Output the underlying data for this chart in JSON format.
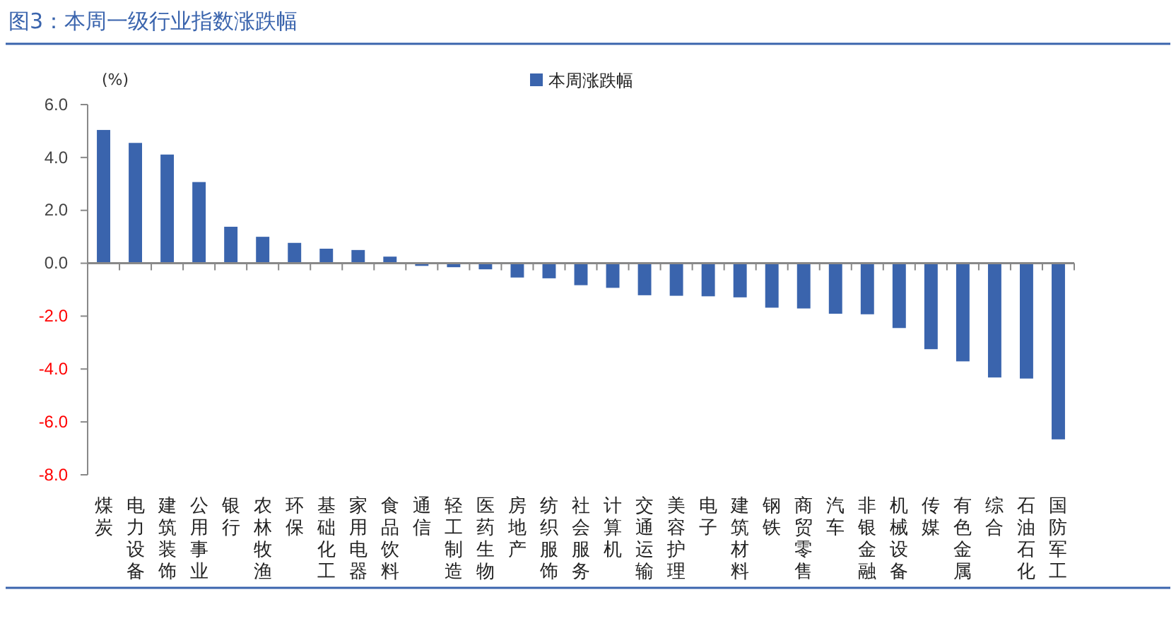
{
  "chart_data": {
    "type": "bar",
    "title": "图3：本周一级行业指数涨跌幅",
    "ylabel": "(%)",
    "categories": [
      "煤炭",
      "电力设备",
      "建筑装饰",
      "公用事业",
      "银行",
      "农林牧渔",
      "环保",
      "基础化工",
      "家用电器",
      "食品饮料",
      "通信",
      "轻工制造",
      "医药生物",
      "房地产",
      "纺织服饰",
      "社会服务",
      "计算机",
      "交通运输",
      "美容护理",
      "电子",
      "建筑材料",
      "钢铁",
      "商贸零售",
      "汽车",
      "非银金融",
      "机械设备",
      "传媒",
      "有色金属",
      "综合",
      "石油石化",
      "国防军工"
    ],
    "series": [
      {
        "name": "本周涨跌幅",
        "color": "#3a64ad",
        "values": [
          5.04,
          4.55,
          4.11,
          3.07,
          1.38,
          1.0,
          0.77,
          0.55,
          0.5,
          0.25,
          -0.1,
          -0.15,
          -0.23,
          -0.54,
          -0.57,
          -0.83,
          -0.93,
          -1.21,
          -1.23,
          -1.25,
          -1.29,
          -1.68,
          -1.71,
          -1.91,
          -1.93,
          -2.45,
          -3.25,
          -3.71,
          -4.32,
          -4.36,
          -6.66
        ]
      }
    ],
    "ylim": [
      -8,
      6
    ],
    "yticks": [
      {
        "value": -8,
        "label": "-8.0"
      },
      {
        "value": -6,
        "label": "-6.0"
      },
      {
        "value": -4,
        "label": "-4.0"
      },
      {
        "value": -2,
        "label": "-2.0"
      },
      {
        "value": 0,
        "label": "0.0"
      },
      {
        "value": 2,
        "label": "2.0"
      },
      {
        "value": 4,
        "label": "4.0"
      },
      {
        "value": 6,
        "label": "6.0"
      }
    ],
    "legend": "top"
  }
}
